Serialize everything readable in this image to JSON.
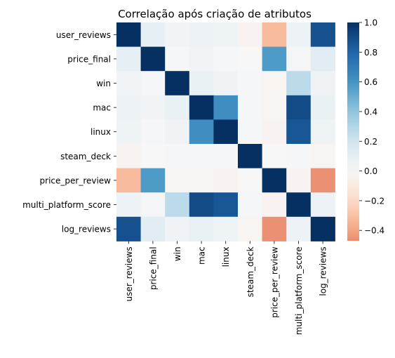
{
  "chart_data": {
    "type": "heatmap",
    "title": "Correlação após criação de atributos",
    "xlabel": "",
    "ylabel": "",
    "labels": [
      "user_reviews",
      "price_final",
      "win",
      "mac",
      "linux",
      "steam_deck",
      "price_per_review",
      "multi_platform_score",
      "log_reviews"
    ],
    "matrix": [
      [
        1.0,
        0.09,
        0.03,
        0.06,
        0.05,
        -0.03,
        -0.32,
        0.06,
        0.88
      ],
      [
        0.09,
        1.0,
        0.01,
        0.03,
        0.01,
        0.0,
        0.57,
        0.02,
        0.11
      ],
      [
        0.03,
        0.01,
        1.0,
        0.07,
        0.04,
        0.01,
        -0.02,
        0.27,
        0.04
      ],
      [
        0.06,
        0.03,
        0.07,
        1.0,
        0.62,
        0.01,
        -0.02,
        0.9,
        0.07
      ],
      [
        0.05,
        0.01,
        0.04,
        0.62,
        1.0,
        0.01,
        -0.03,
        0.86,
        0.05
      ],
      [
        -0.03,
        0.0,
        0.01,
        0.01,
        0.01,
        1.0,
        0.0,
        0.01,
        -0.02
      ],
      [
        -0.32,
        0.57,
        -0.02,
        -0.02,
        -0.03,
        0.0,
        1.0,
        -0.03,
        -0.46
      ],
      [
        0.06,
        0.02,
        0.27,
        0.9,
        0.86,
        0.01,
        -0.03,
        1.0,
        0.06
      ],
      [
        0.88,
        0.11,
        0.04,
        0.07,
        0.05,
        -0.02,
        -0.46,
        0.06,
        1.0
      ]
    ],
    "colorbar": {
      "vmin": -0.47,
      "vmax": 1.0,
      "ticks": [
        1.0,
        0.8,
        0.6,
        0.4,
        0.2,
        0.0,
        -0.2,
        -0.4
      ],
      "tick_labels": [
        "1.0",
        "0.8",
        "0.6",
        "0.4",
        "0.2",
        "0.0",
        "−0.2",
        "−0.4"
      ],
      "colormap": "RdBu_r"
    },
    "grid": false,
    "legend": "right"
  }
}
